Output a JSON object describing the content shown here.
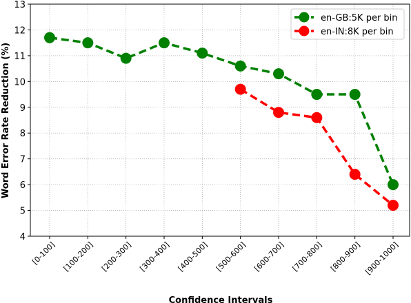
{
  "chart_data": {
    "type": "line",
    "title": "",
    "xlabel": "Confidence Intervals",
    "ylabel": "Word Error Rate Reduction (%)",
    "categories": [
      "[0-100]",
      "[100-200]",
      "[200-300]",
      "[300-400]",
      "[400-500]",
      "[500-600]",
      "[600-700]",
      "[700-800]",
      "[800-900]",
      "[900-1000]"
    ],
    "ylim": [
      4,
      13
    ],
    "yticks": [
      4,
      5,
      6,
      7,
      8,
      9,
      10,
      11,
      12,
      13
    ],
    "grid": true,
    "legend_position": "top-right",
    "series": [
      {
        "name": "en-GB:5K per bin",
        "color": "#008000",
        "values": [
          11.7,
          11.5,
          10.9,
          11.5,
          11.1,
          10.6,
          10.3,
          9.5,
          9.5,
          6.0
        ]
      },
      {
        "name": "en-IN:8K per bin",
        "color": "#ff0000",
        "values": [
          null,
          null,
          null,
          null,
          null,
          9.7,
          8.8,
          8.6,
          6.4,
          5.2
        ]
      }
    ]
  }
}
